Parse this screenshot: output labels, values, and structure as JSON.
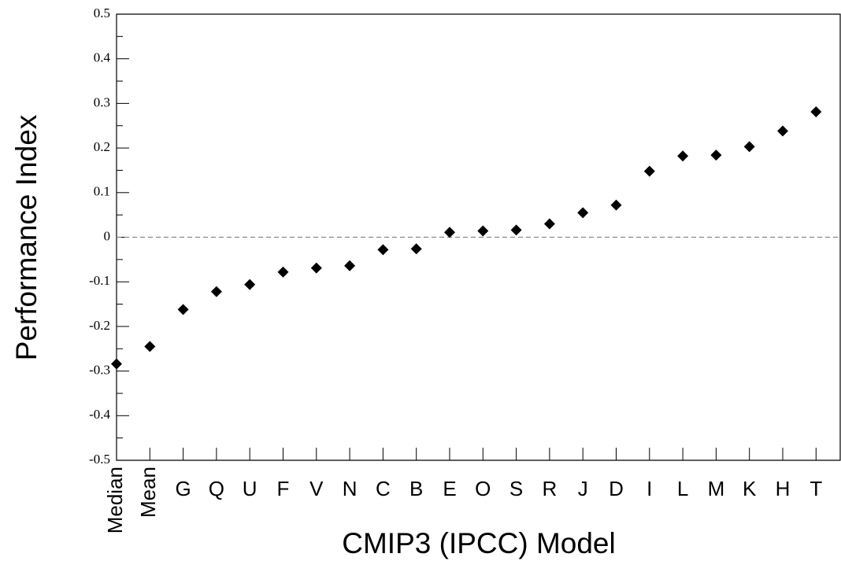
{
  "chart_data": {
    "type": "scatter",
    "x_label": "CMIP3 (IPCC) Model",
    "y_label": "Performance Index",
    "categories": [
      "Median",
      "Mean",
      "G",
      "Q",
      "U",
      "F",
      "V",
      "N",
      "C",
      "B",
      "E",
      "O",
      "S",
      "R",
      "J",
      "D",
      "I",
      "L",
      "M",
      "K",
      "H",
      "T"
    ],
    "values": [
      -0.284,
      -0.245,
      -0.162,
      -0.122,
      -0.106,
      -0.078,
      -0.069,
      -0.064,
      -0.028,
      -0.026,
      0.011,
      0.014,
      0.016,
      0.03,
      0.055,
      0.072,
      0.148,
      0.182,
      0.184,
      0.203,
      0.238,
      0.281
    ],
    "color": "#000000",
    "ylim": [
      -0.5,
      0.5
    ],
    "yticks": [
      -0.5,
      -0.4,
      -0.3,
      -0.2,
      -0.1,
      0,
      0.1,
      0.2,
      0.3,
      0.4,
      0.5
    ],
    "reference_line": 0
  }
}
